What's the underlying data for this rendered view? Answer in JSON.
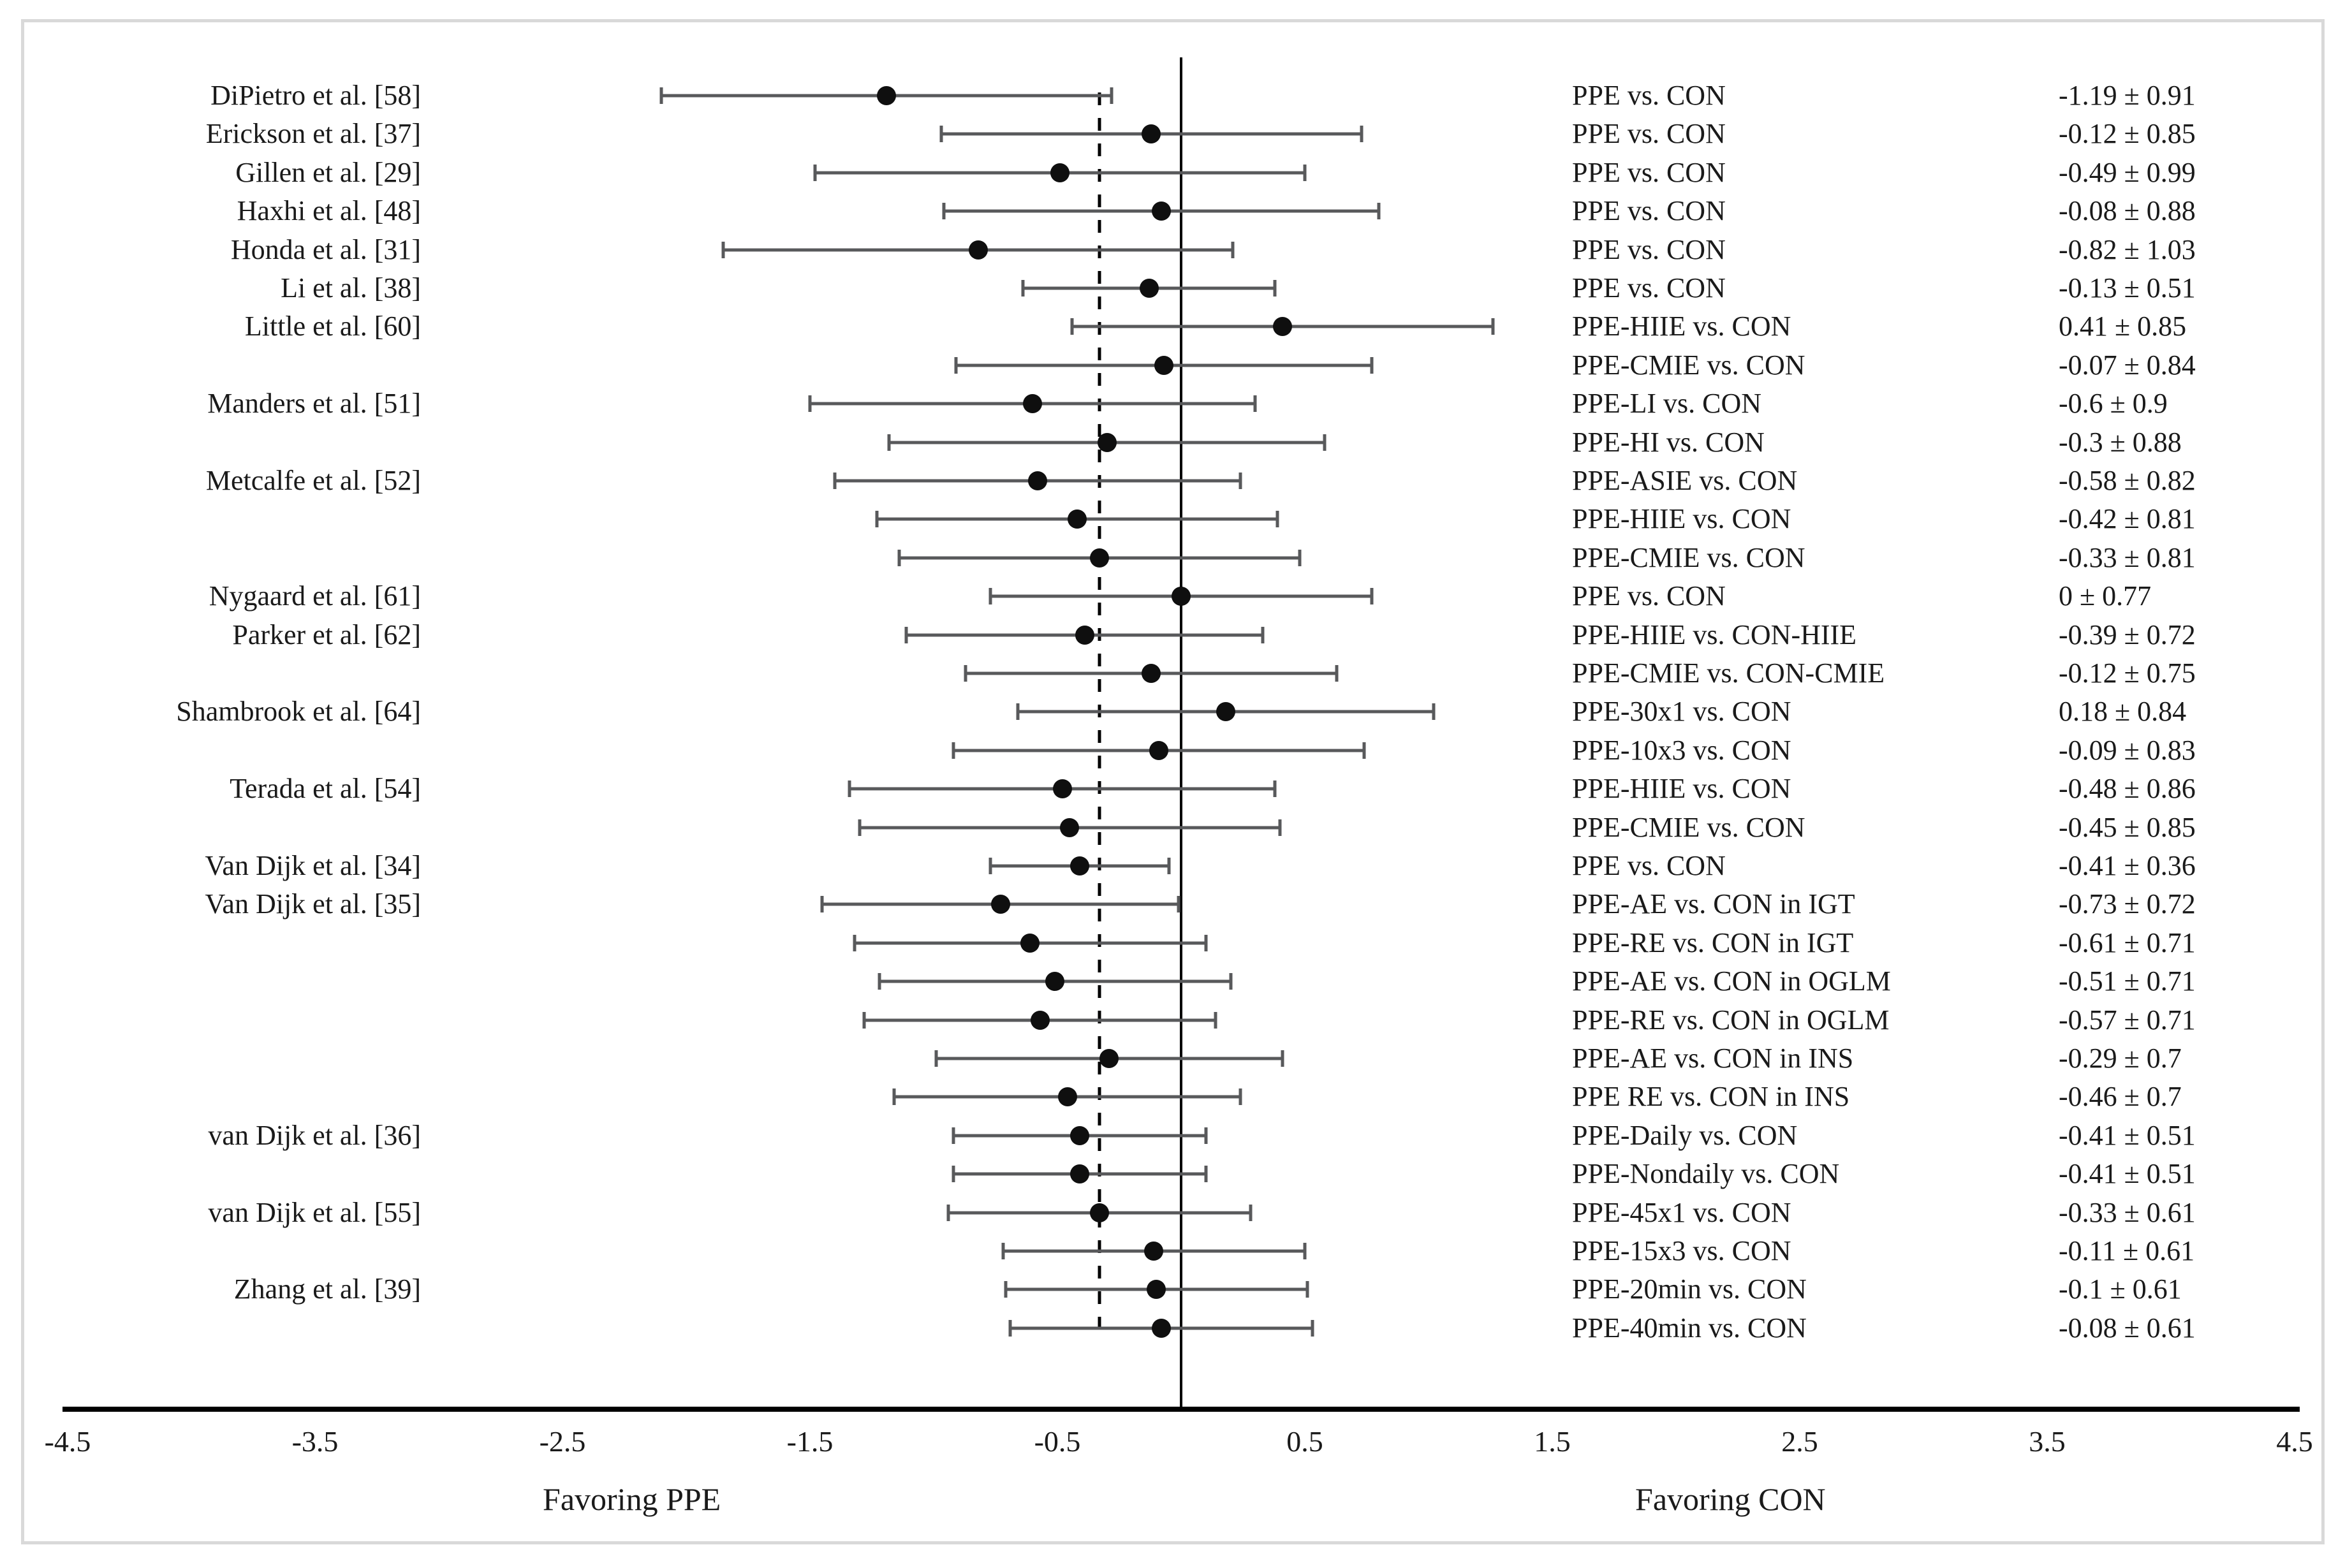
{
  "chart_data": {
    "type": "scatter",
    "style": "forest-plot",
    "title": "",
    "xlabel_left": "Favoring PPE",
    "xlabel_right": "Favoring CON",
    "xlim": [
      -4.5,
      4.5
    ],
    "x_ticks": [
      -4.5,
      -3.5,
      -2.5,
      -1.5,
      -0.5,
      0.5,
      1.5,
      2.5,
      3.5,
      4.5
    ],
    "x_tick_labels": [
      "-4.5",
      "-3.5",
      "-2.5",
      "-1.5",
      "-0.5",
      "0.5",
      "1.5",
      "2.5",
      "3.5",
      "4.5"
    ],
    "reference_line_solid_x": 0,
    "reference_line_dashed_x": -0.33,
    "error_bar_represents": "mean ± SD",
    "legend_position": "none",
    "grid": false,
    "rows": [
      {
        "study": "DiPietro et al. [58]",
        "comparison": "PPE vs. CON",
        "mean": -1.19,
        "sd": 0.91,
        "value_label": "-1.19 ± 0.91"
      },
      {
        "study": "Erickson et al. [37]",
        "comparison": "PPE vs. CON",
        "mean": -0.12,
        "sd": 0.85,
        "value_label": "-0.12 ± 0.85"
      },
      {
        "study": "Gillen et al. [29]",
        "comparison": "PPE vs. CON",
        "mean": -0.49,
        "sd": 0.99,
        "value_label": "-0.49 ± 0.99"
      },
      {
        "study": "Haxhi et al. [48]",
        "comparison": "PPE vs. CON",
        "mean": -0.08,
        "sd": 0.88,
        "value_label": "-0.08 ± 0.88"
      },
      {
        "study": "Honda et al. [31]",
        "comparison": "PPE vs. CON",
        "mean": -0.82,
        "sd": 1.03,
        "value_label": "-0.82 ± 1.03"
      },
      {
        "study": "Li et al. [38]",
        "comparison": "PPE vs. CON",
        "mean": -0.13,
        "sd": 0.51,
        "value_label": "-0.13 ± 0.51"
      },
      {
        "study": "Little et al. [60]",
        "comparison": "PPE-HIIE vs. CON",
        "mean": 0.41,
        "sd": 0.85,
        "value_label": "0.41 ± 0.85"
      },
      {
        "study": "",
        "comparison": "PPE-CMIE vs. CON",
        "mean": -0.07,
        "sd": 0.84,
        "value_label": "-0.07 ± 0.84"
      },
      {
        "study": "Manders et al. [51]",
        "comparison": "PPE-LI vs. CON",
        "mean": -0.6,
        "sd": 0.9,
        "value_label": "-0.6 ± 0.9"
      },
      {
        "study": "",
        "comparison": "PPE-HI vs. CON",
        "mean": -0.3,
        "sd": 0.88,
        "value_label": "-0.3 ± 0.88"
      },
      {
        "study": "Metcalfe et al. [52]",
        "comparison": "PPE-ASIE vs. CON",
        "mean": -0.58,
        "sd": 0.82,
        "value_label": "-0.58 ± 0.82"
      },
      {
        "study": "",
        "comparison": "PPE-HIIE vs. CON",
        "mean": -0.42,
        "sd": 0.81,
        "value_label": "-0.42 ± 0.81"
      },
      {
        "study": "",
        "comparison": "PPE-CMIE vs. CON",
        "mean": -0.33,
        "sd": 0.81,
        "value_label": "-0.33 ± 0.81"
      },
      {
        "study": "Nygaard et al. [61]",
        "comparison": "PPE vs. CON",
        "mean": 0,
        "sd": 0.77,
        "value_label": "0 ± 0.77"
      },
      {
        "study": "Parker et al. [62]",
        "comparison": "PPE-HIIE vs. CON-HIIE",
        "mean": -0.39,
        "sd": 0.72,
        "value_label": "-0.39 ± 0.72"
      },
      {
        "study": "",
        "comparison": "PPE-CMIE vs. CON-CMIE",
        "mean": -0.12,
        "sd": 0.75,
        "value_label": "-0.12 ± 0.75"
      },
      {
        "study": "Shambrook et al. [64]",
        "comparison": "PPE-30x1 vs. CON",
        "mean": 0.18,
        "sd": 0.84,
        "value_label": "0.18 ± 0.84"
      },
      {
        "study": "",
        "comparison": "PPE-10x3 vs. CON",
        "mean": -0.09,
        "sd": 0.83,
        "value_label": "-0.09 ± 0.83"
      },
      {
        "study": "Terada et al. [54]",
        "comparison": "PPE-HIIE vs. CON",
        "mean": -0.48,
        "sd": 0.86,
        "value_label": "-0.48 ± 0.86"
      },
      {
        "study": "",
        "comparison": "PPE-CMIE vs. CON",
        "mean": -0.45,
        "sd": 0.85,
        "value_label": "-0.45 ± 0.85"
      },
      {
        "study": "Van Dijk et al. [34]",
        "comparison": "PPE vs. CON",
        "mean": -0.41,
        "sd": 0.36,
        "value_label": "-0.41 ± 0.36"
      },
      {
        "study": "Van Dijk et al. [35]",
        "comparison": "PPE-AE vs. CON in IGT",
        "mean": -0.73,
        "sd": 0.72,
        "value_label": "-0.73 ± 0.72"
      },
      {
        "study": "",
        "comparison": "PPE-RE vs. CON in IGT",
        "mean": -0.61,
        "sd": 0.71,
        "value_label": "-0.61 ± 0.71"
      },
      {
        "study": "",
        "comparison": "PPE-AE vs. CON in OGLM",
        "mean": -0.51,
        "sd": 0.71,
        "value_label": "-0.51 ± 0.71"
      },
      {
        "study": "",
        "comparison": "PPE-RE vs. CON in OGLM",
        "mean": -0.57,
        "sd": 0.71,
        "value_label": "-0.57 ± 0.71"
      },
      {
        "study": "",
        "comparison": "PPE-AE vs. CON in INS",
        "mean": -0.29,
        "sd": 0.7,
        "value_label": "-0.29 ± 0.7"
      },
      {
        "study": "",
        "comparison": "PPE RE vs. CON in INS",
        "mean": -0.46,
        "sd": 0.7,
        "value_label": "-0.46 ± 0.7"
      },
      {
        "study": "van Dijk et al. [36]",
        "comparison": "PPE-Daily vs. CON",
        "mean": -0.41,
        "sd": 0.51,
        "value_label": "-0.41 ± 0.51"
      },
      {
        "study": "",
        "comparison": "PPE-Nondaily vs. CON",
        "mean": -0.41,
        "sd": 0.51,
        "value_label": "-0.41 ± 0.51"
      },
      {
        "study": "van Dijk et al. [55]",
        "comparison": "PPE-45x1 vs. CON",
        "mean": -0.33,
        "sd": 0.61,
        "value_label": "-0.33 ± 0.61"
      },
      {
        "study": "",
        "comparison": "PPE-15x3 vs. CON",
        "mean": -0.11,
        "sd": 0.61,
        "value_label": "-0.11 ± 0.61"
      },
      {
        "study": "Zhang et al. [39]",
        "comparison": "PPE-20min vs. CON",
        "mean": -0.1,
        "sd": 0.61,
        "value_label": "-0.1 ± 0.61"
      },
      {
        "study": "",
        "comparison": "PPE-40min vs. CON",
        "mean": -0.08,
        "sd": 0.61,
        "value_label": "-0.08 ± 0.61"
      }
    ],
    "colors": {
      "error_bar": "#58595b",
      "marker": "#0f0f0f",
      "axis": "#000000",
      "text": "#1a1a1a",
      "frame_border": "#d9d9d9",
      "background": "#ffffff"
    }
  }
}
